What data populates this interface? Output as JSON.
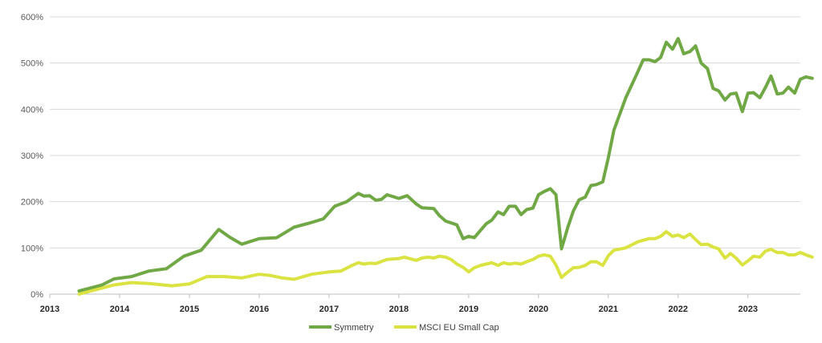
{
  "chart_data": {
    "type": "line",
    "title": "",
    "xlabel": "",
    "ylabel": "",
    "xlim": [
      2013,
      2023.75
    ],
    "ylim": [
      0,
      600
    ],
    "y_ticks": [
      0,
      100,
      200,
      300,
      400,
      500,
      600
    ],
    "y_tick_labels": [
      "0%",
      "100%",
      "200%",
      "300%",
      "400%",
      "500%",
      "600%"
    ],
    "x_ticks": [
      2013,
      2014,
      2015,
      2016,
      2017,
      2018,
      2019,
      2020,
      2021,
      2022,
      2023
    ],
    "x_tick_labels": [
      "2013",
      "2014",
      "2015",
      "2016",
      "2017",
      "2018",
      "2019",
      "2020",
      "2021",
      "2022",
      "2023"
    ],
    "grid": true,
    "legend_position": "bottom",
    "series": [
      {
        "name": "Symmetry",
        "color": "#70a845",
        "points": [
          [
            2013.42,
            7
          ],
          [
            2013.75,
            20
          ],
          [
            2013.92,
            33
          ],
          [
            2014.17,
            38
          ],
          [
            2014.42,
            50
          ],
          [
            2014.67,
            55
          ],
          [
            2014.92,
            82
          ],
          [
            2015.17,
            95
          ],
          [
            2015.42,
            140
          ],
          [
            2015.58,
            123
          ],
          [
            2015.75,
            108
          ],
          [
            2016.0,
            120
          ],
          [
            2016.25,
            122
          ],
          [
            2016.5,
            145
          ],
          [
            2016.75,
            155
          ],
          [
            2016.92,
            163
          ],
          [
            2017.08,
            190
          ],
          [
            2017.25,
            200
          ],
          [
            2017.42,
            218
          ],
          [
            2017.5,
            212
          ],
          [
            2017.58,
            213
          ],
          [
            2017.67,
            203
          ],
          [
            2017.75,
            205
          ],
          [
            2017.83,
            215
          ],
          [
            2018.0,
            207
          ],
          [
            2018.12,
            213
          ],
          [
            2018.25,
            195
          ],
          [
            2018.33,
            187
          ],
          [
            2018.5,
            185
          ],
          [
            2018.58,
            170
          ],
          [
            2018.67,
            158
          ],
          [
            2018.83,
            150
          ],
          [
            2018.92,
            120
          ],
          [
            2019.0,
            125
          ],
          [
            2019.08,
            122
          ],
          [
            2019.25,
            152
          ],
          [
            2019.33,
            160
          ],
          [
            2019.42,
            178
          ],
          [
            2019.5,
            172
          ],
          [
            2019.58,
            190
          ],
          [
            2019.67,
            190
          ],
          [
            2019.75,
            172
          ],
          [
            2019.83,
            183
          ],
          [
            2019.92,
            186
          ],
          [
            2020.0,
            215
          ],
          [
            2020.08,
            222
          ],
          [
            2020.17,
            228
          ],
          [
            2020.25,
            215
          ],
          [
            2020.33,
            98
          ],
          [
            2020.42,
            145
          ],
          [
            2020.5,
            180
          ],
          [
            2020.58,
            204
          ],
          [
            2020.67,
            210
          ],
          [
            2020.75,
            235
          ],
          [
            2020.83,
            237
          ],
          [
            2020.92,
            243
          ],
          [
            2021.0,
            295
          ],
          [
            2021.08,
            355
          ],
          [
            2021.25,
            425
          ],
          [
            2021.42,
            480
          ],
          [
            2021.5,
            507
          ],
          [
            2021.58,
            507
          ],
          [
            2021.67,
            503
          ],
          [
            2021.75,
            512
          ],
          [
            2021.83,
            545
          ],
          [
            2021.92,
            530
          ],
          [
            2022.0,
            553
          ],
          [
            2022.08,
            520
          ],
          [
            2022.17,
            525
          ],
          [
            2022.25,
            537
          ],
          [
            2022.33,
            500
          ],
          [
            2022.42,
            488
          ],
          [
            2022.5,
            445
          ],
          [
            2022.58,
            440
          ],
          [
            2022.67,
            420
          ],
          [
            2022.75,
            433
          ],
          [
            2022.83,
            435
          ],
          [
            2022.92,
            395
          ],
          [
            2023.0,
            435
          ],
          [
            2023.08,
            436
          ],
          [
            2023.17,
            425
          ],
          [
            2023.25,
            447
          ],
          [
            2023.33,
            472
          ],
          [
            2023.42,
            433
          ],
          [
            2023.5,
            435
          ],
          [
            2023.58,
            448
          ],
          [
            2023.67,
            435
          ],
          [
            2023.75,
            465
          ],
          [
            2023.83,
            470
          ],
          [
            2023.92,
            467
          ]
        ]
      },
      {
        "name": "MSCI EU Small Cap",
        "color": "#dbe343",
        "points": [
          [
            2013.42,
            0
          ],
          [
            2013.67,
            10
          ],
          [
            2013.92,
            20
          ],
          [
            2014.17,
            25
          ],
          [
            2014.42,
            23
          ],
          [
            2014.75,
            18
          ],
          [
            2015.0,
            22
          ],
          [
            2015.25,
            38
          ],
          [
            2015.5,
            38
          ],
          [
            2015.75,
            35
          ],
          [
            2016.0,
            43
          ],
          [
            2016.17,
            40
          ],
          [
            2016.33,
            35
          ],
          [
            2016.5,
            32
          ],
          [
            2016.75,
            43
          ],
          [
            2017.0,
            48
          ],
          [
            2017.17,
            50
          ],
          [
            2017.33,
            62
          ],
          [
            2017.42,
            68
          ],
          [
            2017.5,
            65
          ],
          [
            2017.58,
            67
          ],
          [
            2017.67,
            66
          ],
          [
            2017.83,
            75
          ],
          [
            2018.0,
            77
          ],
          [
            2018.08,
            80
          ],
          [
            2018.25,
            73
          ],
          [
            2018.33,
            78
          ],
          [
            2018.42,
            80
          ],
          [
            2018.5,
            78
          ],
          [
            2018.58,
            82
          ],
          [
            2018.67,
            80
          ],
          [
            2018.75,
            75
          ],
          [
            2018.83,
            65
          ],
          [
            2018.92,
            58
          ],
          [
            2019.0,
            48
          ],
          [
            2019.08,
            57
          ],
          [
            2019.17,
            62
          ],
          [
            2019.25,
            65
          ],
          [
            2019.33,
            68
          ],
          [
            2019.42,
            62
          ],
          [
            2019.5,
            68
          ],
          [
            2019.58,
            65
          ],
          [
            2019.67,
            67
          ],
          [
            2019.75,
            65
          ],
          [
            2019.83,
            70
          ],
          [
            2019.92,
            75
          ],
          [
            2020.0,
            82
          ],
          [
            2020.08,
            85
          ],
          [
            2020.17,
            82
          ],
          [
            2020.25,
            63
          ],
          [
            2020.33,
            36
          ],
          [
            2020.42,
            48
          ],
          [
            2020.5,
            57
          ],
          [
            2020.58,
            58
          ],
          [
            2020.67,
            62
          ],
          [
            2020.75,
            70
          ],
          [
            2020.83,
            70
          ],
          [
            2020.92,
            62
          ],
          [
            2021.0,
            83
          ],
          [
            2021.08,
            95
          ],
          [
            2021.25,
            100
          ],
          [
            2021.42,
            113
          ],
          [
            2021.58,
            120
          ],
          [
            2021.67,
            120
          ],
          [
            2021.75,
            125
          ],
          [
            2021.83,
            135
          ],
          [
            2021.92,
            125
          ],
          [
            2022.0,
            128
          ],
          [
            2022.08,
            122
          ],
          [
            2022.17,
            130
          ],
          [
            2022.25,
            118
          ],
          [
            2022.33,
            107
          ],
          [
            2022.42,
            108
          ],
          [
            2022.5,
            102
          ],
          [
            2022.58,
            98
          ],
          [
            2022.67,
            78
          ],
          [
            2022.75,
            88
          ],
          [
            2022.83,
            78
          ],
          [
            2022.92,
            63
          ],
          [
            2023.0,
            72
          ],
          [
            2023.08,
            82
          ],
          [
            2023.17,
            80
          ],
          [
            2023.25,
            93
          ],
          [
            2023.33,
            97
          ],
          [
            2023.42,
            90
          ],
          [
            2023.5,
            90
          ],
          [
            2023.58,
            85
          ],
          [
            2023.67,
            85
          ],
          [
            2023.75,
            90
          ],
          [
            2023.83,
            85
          ],
          [
            2023.92,
            80
          ]
        ]
      }
    ]
  }
}
